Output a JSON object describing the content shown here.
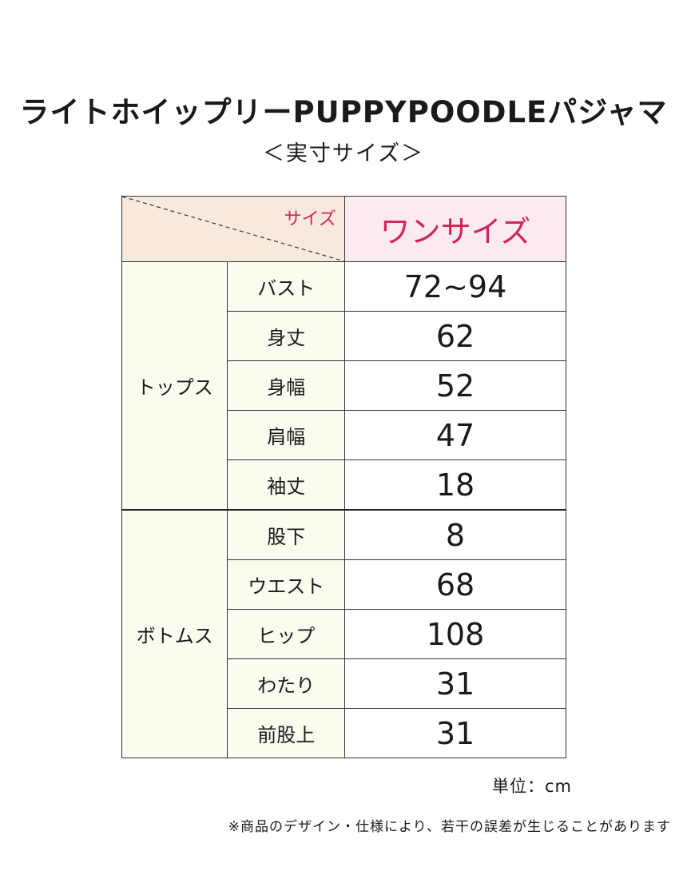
{
  "title": "ライトホイップリーPUPPYPOODLEパジャマ",
  "subtitle": "＜実寸サイズ＞",
  "table": {
    "corner_label": "サイズ",
    "size_header": "ワンサイズ",
    "groups": [
      {
        "name": "トップス",
        "rows": [
          {
            "label": "バスト",
            "value": "72~94"
          },
          {
            "label": "身丈",
            "value": "62"
          },
          {
            "label": "身幅",
            "value": "52"
          },
          {
            "label": "肩幅",
            "value": "47"
          },
          {
            "label": "袖丈",
            "value": "18"
          }
        ]
      },
      {
        "name": "ボトムス",
        "rows": [
          {
            "label": "股下",
            "value": "8"
          },
          {
            "label": "ウエスト",
            "value": "68"
          },
          {
            "label": "ヒップ",
            "value": "108"
          },
          {
            "label": "わたり",
            "value": "31"
          },
          {
            "label": "前股上",
            "value": "31"
          }
        ]
      }
    ]
  },
  "unit": "単位：cm",
  "note": "※商品のデザイン・仕様により、若干の誤差が生じることがあります",
  "colors": {
    "accent": "#d1265b",
    "corner_bg": "#f8e9de",
    "header_bg": "#fbeaef",
    "label_bg": "#fbfbef"
  }
}
